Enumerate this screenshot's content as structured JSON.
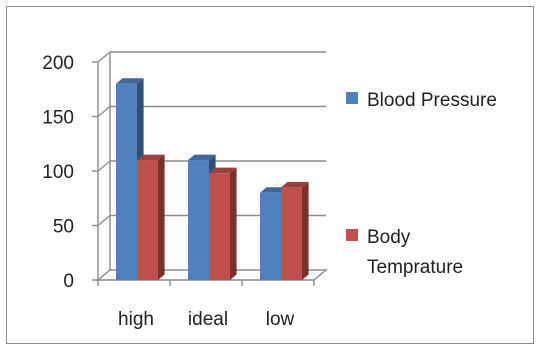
{
  "chart_data": {
    "type": "bar",
    "categories": [
      "high",
      "ideal",
      "low"
    ],
    "series": [
      {
        "name": "Blood Pressure",
        "values": [
          180,
          110,
          80
        ],
        "color": "#4f81bd"
      },
      {
        "name": "Body Temprature",
        "values": [
          110,
          98,
          85
        ],
        "color": "#c0504d"
      }
    ],
    "ylim": [
      0,
      200
    ],
    "yticks": [
      0,
      50,
      100,
      150,
      200
    ],
    "grid": true,
    "legend": "right",
    "three_d": true
  },
  "legend_lines": [
    [
      "Blood Pressure"
    ],
    [
      "Body",
      "Temprature"
    ]
  ]
}
